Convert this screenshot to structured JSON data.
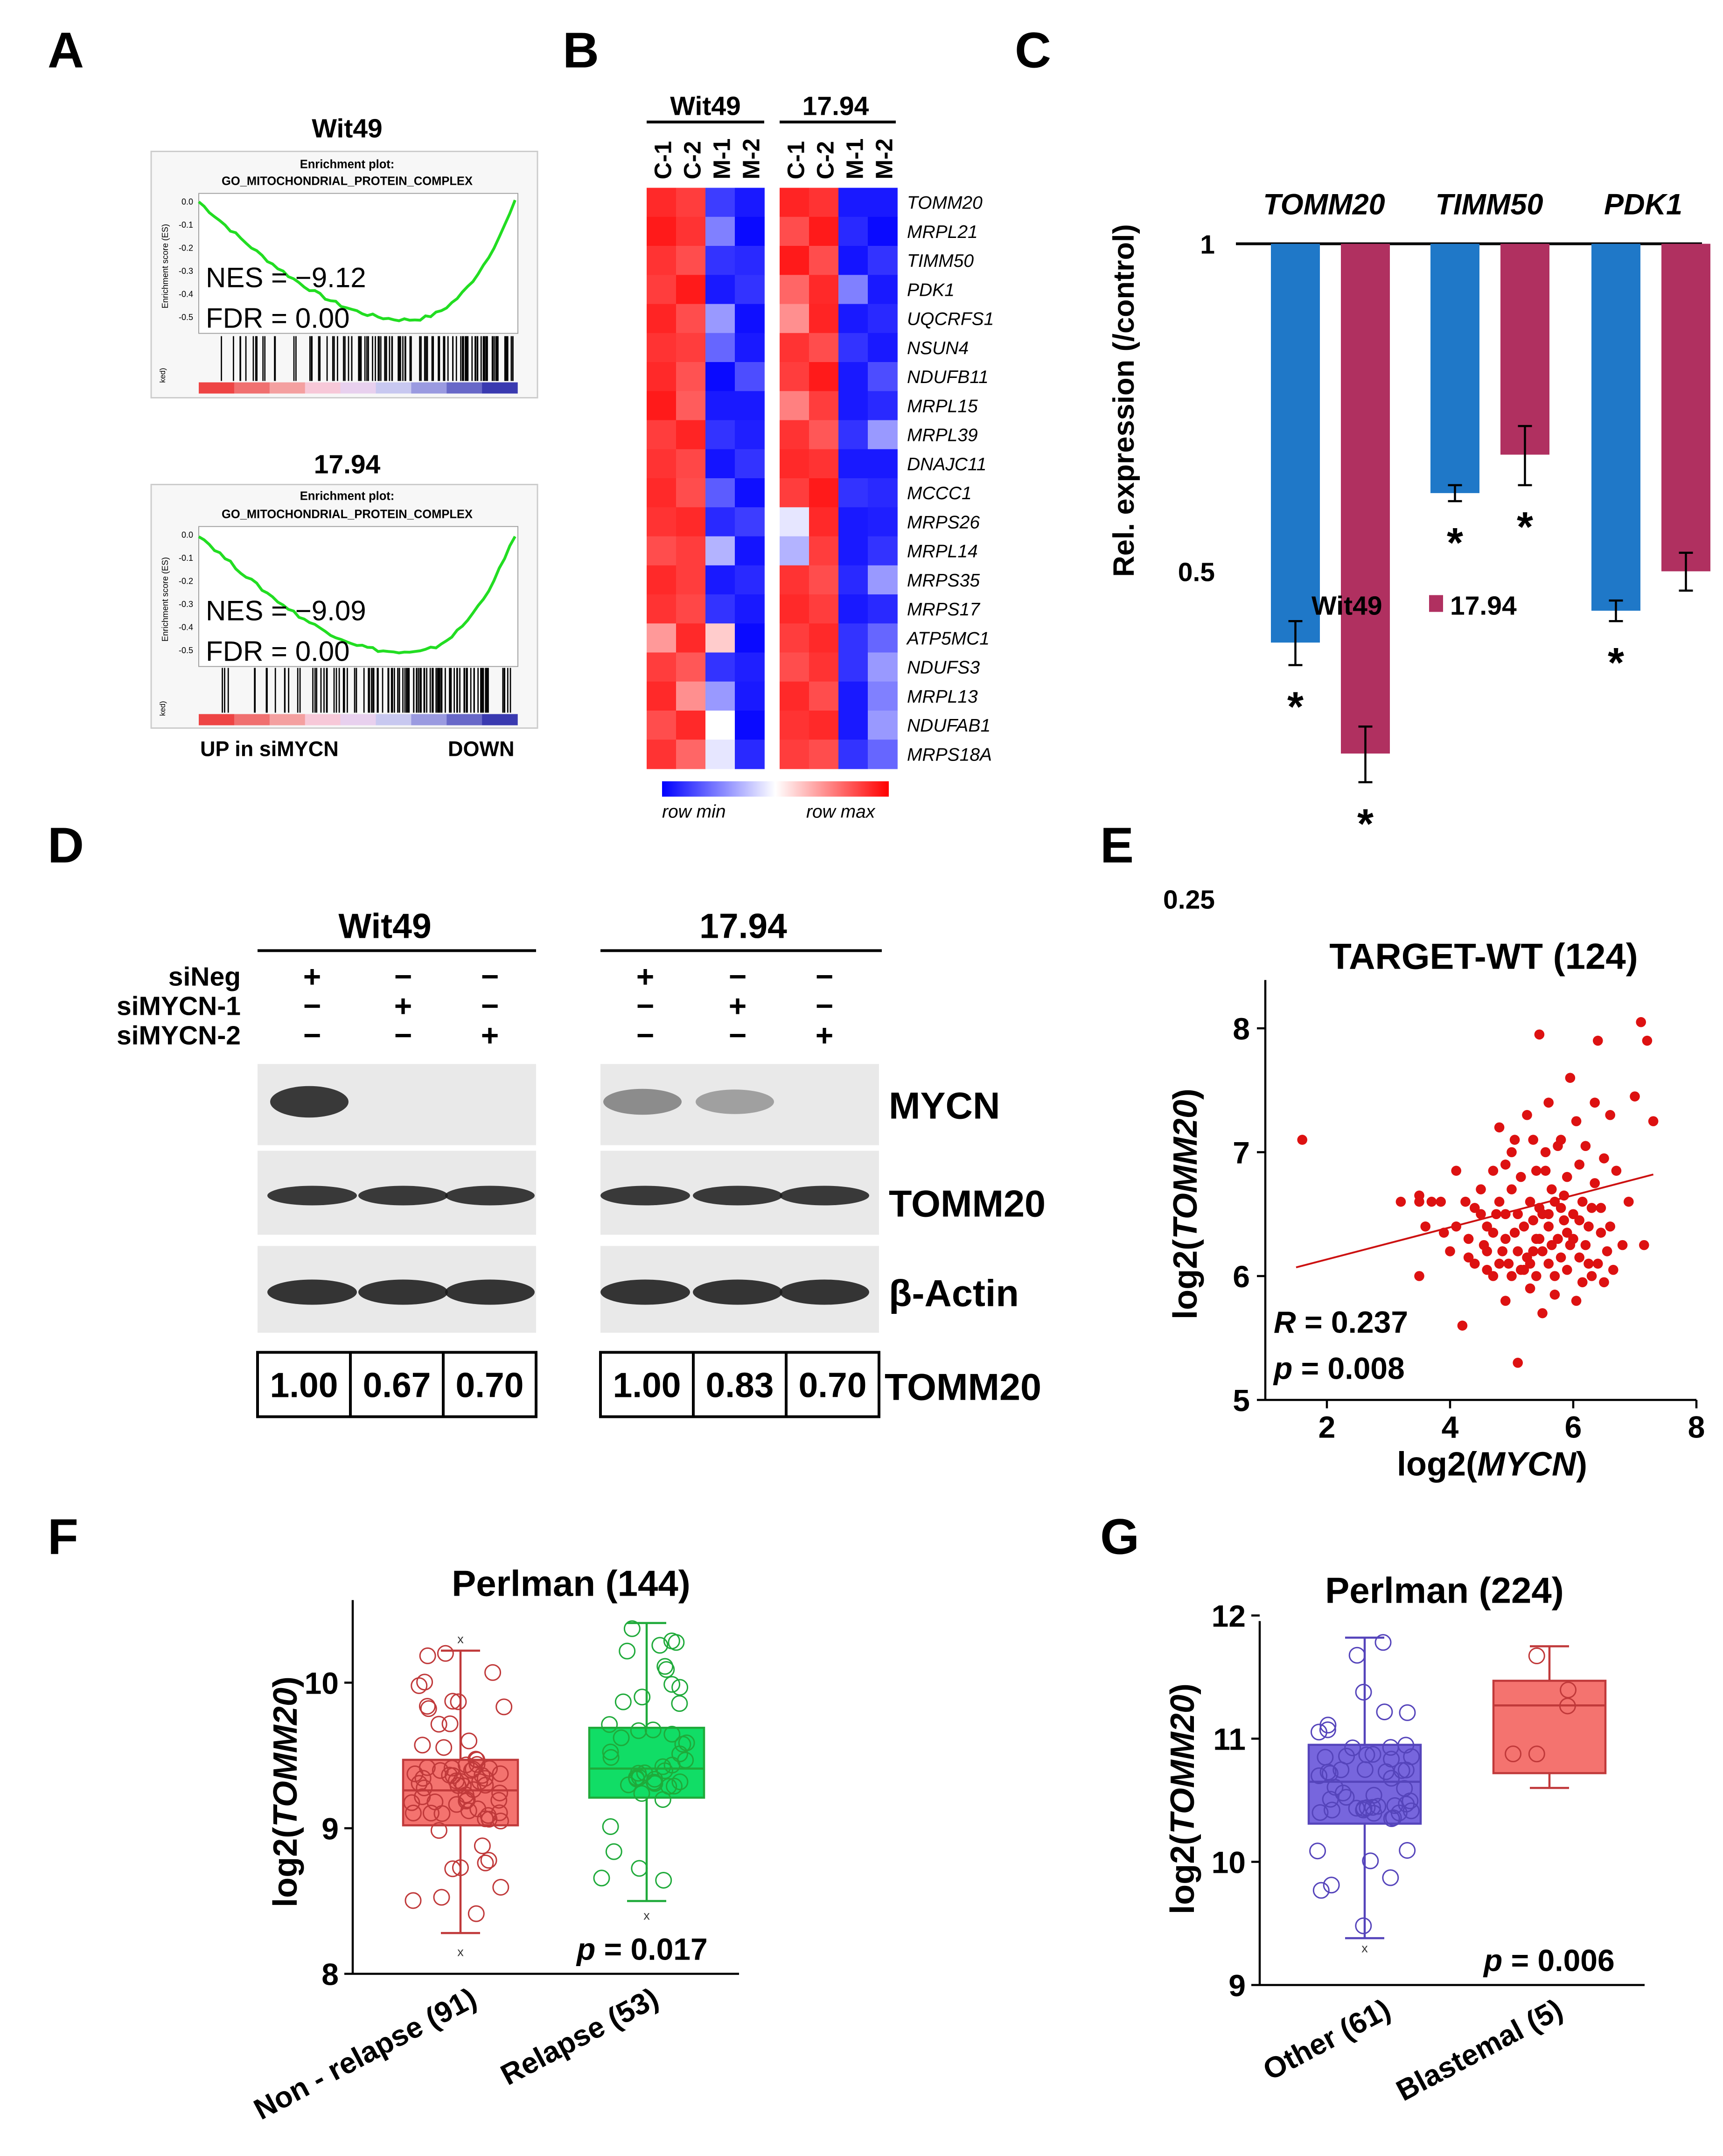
{
  "panels": {
    "A": {
      "letter": "A",
      "plots": [
        {
          "cell": "Wit49",
          "plot_title": "Enrichment plot:",
          "gene_set": "GO_MITOCHONDRIAL_PROTEIN_COMPLEX",
          "nes": "NES = −9.12",
          "fdr": "FDR = 0.00",
          "ylabel": "Enrichment score (ES)",
          "yticks": [
            "0.0",
            "-0.1",
            "-0.2",
            "-0.3",
            "-0.4",
            "-0.5"
          ],
          "rank_label": "ked)"
        },
        {
          "cell": "17.94",
          "plot_title": "Enrichment plot:",
          "gene_set": "GO_MITOCHONDRIAL_PROTEIN_COMPLEX",
          "nes": "NES = −9.09",
          "fdr": "FDR = 0.00",
          "ylabel": "Enrichment score (ES)",
          "yticks": [
            "0.0",
            "-0.1",
            "-0.2",
            "-0.3",
            "-0.4",
            "-0.5"
          ],
          "rank_label": "ked)"
        }
      ],
      "xlabel_left": "UP in siMYCN",
      "xlabel_right": "DOWN"
    },
    "B": {
      "letter": "B",
      "groups": [
        "Wit49",
        "17.94"
      ],
      "columns": [
        "C-1",
        "C-2",
        "M-1",
        "M-2"
      ],
      "genes": [
        "TOMM20",
        "MRPL21",
        "TIMM50",
        "PDK1",
        "UQCRFS1",
        "NSUN4",
        "NDUFB11",
        "MRPL15",
        "MRPL39",
        "DNAJC11",
        "MCCC1",
        "MRPS26",
        "MRPL14",
        "MRPS35",
        "MRPS17",
        "ATP5MC1",
        "NDUFS3",
        "MRPL13",
        "NDUFAB1",
        "MRPS18A"
      ],
      "legend_min": "row min",
      "legend_max": "row max",
      "heat_values": {
        "Wit49": [
          [
            0.92,
            0.88,
            0.12,
            0.05
          ],
          [
            0.95,
            0.9,
            0.25,
            0.02
          ],
          [
            0.9,
            0.85,
            0.1,
            0.08
          ],
          [
            0.88,
            0.95,
            0.05,
            0.1
          ],
          [
            0.93,
            0.85,
            0.3,
            0.03
          ],
          [
            0.9,
            0.88,
            0.2,
            0.05
          ],
          [
            0.92,
            0.84,
            0.02,
            0.15
          ],
          [
            0.95,
            0.82,
            0.05,
            0.05
          ],
          [
            0.88,
            0.93,
            0.1,
            0.06
          ],
          [
            0.9,
            0.86,
            0.04,
            0.1
          ],
          [
            0.92,
            0.85,
            0.18,
            0.03
          ],
          [
            0.9,
            0.92,
            0.08,
            0.12
          ],
          [
            0.85,
            0.88,
            0.35,
            0.04
          ],
          [
            0.92,
            0.88,
            0.05,
            0.08
          ],
          [
            0.9,
            0.86,
            0.1,
            0.05
          ],
          [
            0.7,
            0.92,
            0.6,
            0.02
          ],
          [
            0.88,
            0.83,
            0.1,
            0.06
          ],
          [
            0.92,
            0.72,
            0.3,
            0.05
          ],
          [
            0.85,
            0.92,
            0.5,
            0.02
          ],
          [
            0.9,
            0.8,
            0.45,
            0.08
          ]
        ],
        "17.94": [
          [
            0.93,
            0.9,
            0.05,
            0.05
          ],
          [
            0.85,
            0.95,
            0.08,
            0.02
          ],
          [
            0.95,
            0.85,
            0.04,
            0.1
          ],
          [
            0.8,
            0.92,
            0.25,
            0.05
          ],
          [
            0.72,
            0.93,
            0.05,
            0.08
          ],
          [
            0.9,
            0.85,
            0.1,
            0.05
          ],
          [
            0.88,
            0.95,
            0.05,
            0.15
          ],
          [
            0.75,
            0.88,
            0.05,
            0.08
          ],
          [
            0.9,
            0.83,
            0.1,
            0.3
          ],
          [
            0.92,
            0.9,
            0.05,
            0.05
          ],
          [
            0.88,
            0.95,
            0.1,
            0.08
          ],
          [
            0.45,
            0.92,
            0.05,
            0.06
          ],
          [
            0.35,
            0.88,
            0.05,
            0.1
          ],
          [
            0.9,
            0.85,
            0.08,
            0.3
          ],
          [
            0.92,
            0.88,
            0.05,
            0.08
          ],
          [
            0.88,
            0.92,
            0.1,
            0.2
          ],
          [
            0.85,
            0.9,
            0.1,
            0.3
          ],
          [
            0.92,
            0.85,
            0.05,
            0.25
          ],
          [
            0.9,
            0.92,
            0.05,
            0.3
          ],
          [
            0.88,
            0.85,
            0.1,
            0.2
          ]
        ]
      }
    },
    "C": {
      "letter": "C",
      "ylabel": "Rel. expression (/control)",
      "genes": [
        "TOMM20",
        "TIMM50",
        "PDK1"
      ],
      "yticks": [
        "1",
        "0.5",
        "0.25"
      ],
      "legend": [
        "Wit49",
        "17.94"
      ],
      "star": "*"
    },
    "D": {
      "letter": "D",
      "groups": [
        "Wit49",
        "17.94"
      ],
      "row_labels": [
        "siNeg",
        "siMYCN-1",
        "siMYCN-2"
      ],
      "signs": [
        [
          "+",
          "−",
          "−"
        ],
        [
          "−",
          "+",
          "−"
        ],
        [
          "−",
          "−",
          "+"
        ]
      ],
      "blot_labels": [
        "MYCN",
        "TOMM20",
        "β-Actin"
      ],
      "quant_label": "TOMM20",
      "quant": {
        "Wit49": [
          "1.00",
          "0.67",
          "0.70"
        ],
        "17.94": [
          "1.00",
          "0.83",
          "0.70"
        ]
      },
      "mycn_intensity": {
        "Wit49": [
          0.85,
          0.0,
          0.0
        ],
        "17.94": [
          0.45,
          0.35,
          0.0
        ]
      }
    },
    "E": {
      "letter": "E",
      "title": "TARGET-WT (124)",
      "r_label": "R",
      "r_value": " = 0.237",
      "p_label": "p",
      "p_value": " = 0.008",
      "xlabel_pre": "log2(",
      "xlabel_gene": "MYCN",
      "xlabel_post": ")",
      "ylabel_pre": "log2(",
      "ylabel_gene": "TOMM20",
      "ylabel_post": ")"
    },
    "F": {
      "letter": "F",
      "title": "Perlman (144)",
      "p_label": "p",
      "p_value": " = 0.017",
      "ylabel_pre": "log2(",
      "ylabel_gene": "TOMM20",
      "ylabel_post": ")",
      "categories": [
        "Non - relapse (91)",
        "Relapse (53)"
      ]
    },
    "G": {
      "letter": "G",
      "title": "Perlman (224)",
      "p_label": "p",
      "p_value": " = 0.006",
      "ylabel_pre": "log2(",
      "ylabel_gene": "TOMM20",
      "ylabel_post": ")",
      "categories": [
        "Other (61)",
        "Blastemal (5)"
      ]
    }
  },
  "colors": {
    "wit49": "#1f78c8",
    "c1794": "#b03060",
    "heat_red": "#ff0000",
    "heat_blue": "#0000ff",
    "scatter": "#dd1111",
    "box_red_fill": "#f4736f",
    "box_red_edge": "#c0393a",
    "box_green_fill": "#11dd66",
    "box_green_edge": "#1faa3a",
    "box_purple_fill": "#7766dd",
    "box_purple_edge": "#5544bb",
    "es_line": "#22dd22"
  },
  "chart_data": [
    {
      "panel": "C",
      "type": "bar",
      "categories": [
        "TOMM20",
        "TIMM50",
        "PDK1"
      ],
      "series": [
        {
          "name": "Wit49",
          "values": [
            0.43,
            0.59,
            0.46
          ],
          "errors": [
            0.02,
            0.01,
            0.01
          ]
        },
        {
          "name": "17.94",
          "values": [
            0.34,
            0.64,
            0.5
          ],
          "errors": [
            0.02,
            0.04,
            0.02
          ]
        }
      ],
      "ylabel": "Rel. expression (/control)",
      "yscale": "log2",
      "ylim": [
        0.25,
        1
      ],
      "yticks": [
        1,
        0.5,
        0.25
      ],
      "significant": [
        [
          true,
          true
        ],
        [
          true,
          true
        ],
        [
          true,
          false
        ]
      ],
      "legend_position": "bottom"
    },
    {
      "panel": "E",
      "type": "scatter",
      "title": "TARGET-WT (124)",
      "xlabel": "log2(MYCN)",
      "ylabel": "log2(TOMM20)",
      "xlim": [
        1,
        8
      ],
      "ylim": [
        5,
        8.3
      ],
      "xticks": [
        2,
        4,
        6,
        8
      ],
      "yticks": [
        5,
        6,
        7,
        8
      ],
      "trend_line": {
        "x": [
          1.5,
          7.3
        ],
        "y": [
          6.07,
          6.82
        ]
      },
      "R": 0.237,
      "p": 0.008,
      "points": [
        [
          1.6,
          7.1
        ],
        [
          3.2,
          6.6
        ],
        [
          3.5,
          6.65
        ],
        [
          3.5,
          6.6
        ],
        [
          3.6,
          6.4
        ],
        [
          3.7,
          6.6
        ],
        [
          3.85,
          6.6
        ],
        [
          3.5,
          6.0
        ],
        [
          4.0,
          6.2
        ],
        [
          4.1,
          6.4
        ],
        [
          4.2,
          5.6
        ],
        [
          4.3,
          6.15
        ],
        [
          4.3,
          6.3
        ],
        [
          4.4,
          6.1
        ],
        [
          4.5,
          6.5
        ],
        [
          4.5,
          6.7
        ],
        [
          4.6,
          6.2
        ],
        [
          4.6,
          6.4
        ],
        [
          4.7,
          6.0
        ],
        [
          4.7,
          6.85
        ],
        [
          4.8,
          6.1
        ],
        [
          4.8,
          6.6
        ],
        [
          4.8,
          7.2
        ],
        [
          4.9,
          6.3
        ],
        [
          4.9,
          5.8
        ],
        [
          4.9,
          6.5
        ],
        [
          5.0,
          6.0
        ],
        [
          5.0,
          6.7
        ],
        [
          5.0,
          7.0
        ],
        [
          5.1,
          6.2
        ],
        [
          5.1,
          6.5
        ],
        [
          5.1,
          5.3
        ],
        [
          5.15,
          6.8
        ],
        [
          5.2,
          6.4
        ],
        [
          5.2,
          6.05
        ],
        [
          5.25,
          7.3
        ],
        [
          5.3,
          6.1
        ],
        [
          5.3,
          6.6
        ],
        [
          5.3,
          5.9
        ],
        [
          5.35,
          7.1
        ],
        [
          5.4,
          6.3
        ],
        [
          5.4,
          6.85
        ],
        [
          5.4,
          6.0
        ],
        [
          5.45,
          7.95
        ],
        [
          5.5,
          6.5
        ],
        [
          5.5,
          5.7
        ],
        [
          5.5,
          6.2
        ],
        [
          5.55,
          7.0
        ],
        [
          5.6,
          6.4
        ],
        [
          5.6,
          6.1
        ],
        [
          5.6,
          7.4
        ],
        [
          5.65,
          6.7
        ],
        [
          5.7,
          6.0
        ],
        [
          5.7,
          6.6
        ],
        [
          5.7,
          5.85
        ],
        [
          5.75,
          6.3
        ],
        [
          5.8,
          7.1
        ],
        [
          5.8,
          6.15
        ],
        [
          5.85,
          6.45
        ],
        [
          5.9,
          6.8
        ],
        [
          5.9,
          6.05
        ],
        [
          5.95,
          7.6
        ],
        [
          6.0,
          6.3
        ],
        [
          6.0,
          6.5
        ],
        [
          6.05,
          5.8
        ],
        [
          6.1,
          6.9
        ],
        [
          6.1,
          6.15
        ],
        [
          6.15,
          6.6
        ],
        [
          6.2,
          7.05
        ],
        [
          6.2,
          6.25
        ],
        [
          6.25,
          6.4
        ],
        [
          6.3,
          6.0
        ],
        [
          6.35,
          6.75
        ],
        [
          6.4,
          7.9
        ],
        [
          6.4,
          6.1
        ],
        [
          6.45,
          6.55
        ],
        [
          6.5,
          6.95
        ],
        [
          6.55,
          6.2
        ],
        [
          6.6,
          7.3
        ],
        [
          6.6,
          6.4
        ],
        [
          6.7,
          6.85
        ],
        [
          6.8,
          6.25
        ],
        [
          6.9,
          6.6
        ],
        [
          7.0,
          7.45
        ],
        [
          7.1,
          8.05
        ],
        [
          7.15,
          6.25
        ],
        [
          7.2,
          7.9
        ],
        [
          7.3,
          7.25
        ],
        [
          4.1,
          6.85
        ],
        [
          4.4,
          6.55
        ],
        [
          4.6,
          6.05
        ],
        [
          4.9,
          6.9
        ],
        [
          5.05,
          6.35
        ],
        [
          5.25,
          6.15
        ],
        [
          5.45,
          6.55
        ],
        [
          5.65,
          6.25
        ],
        [
          5.85,
          6.65
        ],
        [
          6.05,
          7.25
        ],
        [
          6.25,
          6.1
        ],
        [
          6.45,
          6.35
        ],
        [
          4.7,
          6.35
        ],
        [
          5.15,
          6.05
        ],
        [
          5.35,
          6.45
        ],
        [
          5.55,
          6.85
        ],
        [
          5.75,
          7.05
        ],
        [
          5.95,
          6.25
        ],
        [
          6.15,
          5.95
        ],
        [
          6.35,
          7.4
        ],
        [
          4.25,
          6.6
        ],
        [
          4.55,
          6.25
        ],
        [
          4.85,
          6.2
        ],
        [
          5.05,
          7.1
        ],
        [
          5.45,
          6.3
        ],
        [
          5.9,
          6.35
        ],
        [
          6.3,
          6.55
        ],
        [
          6.65,
          6.05
        ],
        [
          3.9,
          6.35
        ],
        [
          4.95,
          6.1
        ],
        [
          5.6,
          6.5
        ],
        [
          6.5,
          5.95
        ],
        [
          5.35,
          6.2
        ],
        [
          5.8,
          6.55
        ],
        [
          4.75,
          6.5
        ],
        [
          6.1,
          6.45
        ]
      ]
    },
    {
      "panel": "F",
      "type": "box",
      "title": "Perlman (144)",
      "ylabel": "log2(TOMM20)",
      "ylim": [
        8,
        10.5
      ],
      "yticks": [
        8,
        9,
        10
      ],
      "categories": [
        "Non - relapse (91)",
        "Relapse (53)"
      ],
      "boxes": [
        {
          "min": 8.28,
          "q1": 9.02,
          "median": 9.26,
          "q3": 9.47,
          "max": 10.22,
          "outliers": [
            8.15,
            10.3
          ]
        },
        {
          "min": 8.5,
          "q1": 9.21,
          "median": 9.41,
          "q3": 9.69,
          "max": 10.41,
          "outliers": [
            8.4
          ]
        }
      ],
      "p": 0.017
    },
    {
      "panel": "G",
      "type": "box",
      "title": "Perlman (224)",
      "ylabel": "log2(TOMM20)",
      "ylim": [
        9,
        12
      ],
      "yticks": [
        9,
        10,
        11,
        12
      ],
      "categories": [
        "Other (61)",
        "Blastemal (5)"
      ],
      "boxes": [
        {
          "min": 9.38,
          "q1": 10.31,
          "median": 10.65,
          "q3": 10.95,
          "max": 11.82,
          "outliers": [
            9.3
          ]
        },
        {
          "min": 10.6,
          "q1": 10.72,
          "median": 11.27,
          "q3": 11.47,
          "max": 11.75,
          "outliers": []
        }
      ],
      "p": 0.006
    }
  ]
}
